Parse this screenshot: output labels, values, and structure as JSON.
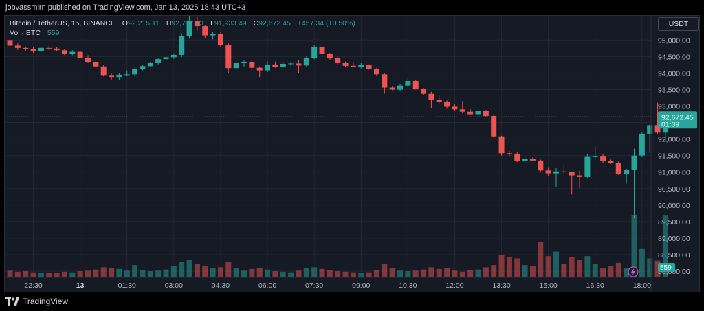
{
  "header": {
    "published_text": "jobvassmirn published on TradingView.com, Jan 13, 2025 18:43 UTC+3"
  },
  "legend": {
    "symbol": "Bitcoin / TetherUS, 15, BINANCE",
    "o_label": "O",
    "o_value": "92,215.11",
    "h_label": "H",
    "h_value": "92,717.73",
    "l_label": "L",
    "l_value": "91,933.49",
    "c_label": "C",
    "c_value": "92,672.45",
    "change": "+457.34 (+0.50%)",
    "vol_label": "Vol · BTC",
    "vol_value": "559"
  },
  "currency_button": "USDT",
  "footer": {
    "brand": "TradingView"
  },
  "colors": {
    "background": "#161a25",
    "up": "#26a69a",
    "down": "#ef5350",
    "grid": "#232733",
    "axis_text": "#b2b5be",
    "price_line": "#26a69a"
  },
  "chart_data": {
    "type": "candlestick",
    "symbol": "Bitcoin / TetherUS",
    "interval": "15",
    "exchange": "BINANCE",
    "ylim": [
      87900,
      96000
    ],
    "y_ticks": [
      88000,
      88500,
      89000,
      89500,
      90000,
      90500,
      91000,
      91500,
      92000,
      92500,
      93000,
      93500,
      94000,
      94500,
      95000
    ],
    "y_tick_labels": [
      "88,000.00",
      "88,500.00",
      "89,000.00",
      "89,500.00",
      "90,000.00",
      "90,500.00",
      "91,000.00",
      "91,500.00",
      "92,000.00",
      "92,500.00",
      "93,000.00",
      "93,500.00",
      "94,000.00",
      "94,500.00",
      "95,000.00"
    ],
    "x_ticks": [
      {
        "label": "22:30",
        "index": 3
      },
      {
        "label": "13",
        "index": 9
      },
      {
        "label": "01:30",
        "index": 15
      },
      {
        "label": "03:00",
        "index": 21
      },
      {
        "label": "04:30",
        "index": 27
      },
      {
        "label": "06:00",
        "index": 33
      },
      {
        "label": "07:30",
        "index": 39
      },
      {
        "label": "09:00",
        "index": 45
      },
      {
        "label": "10:30",
        "index": 51
      },
      {
        "label": "12:00",
        "index": 57
      },
      {
        "label": "13:30",
        "index": 63
      },
      {
        "label": "15:00",
        "index": 69
      },
      {
        "label": "16:30",
        "index": 75
      },
      {
        "label": "18:00",
        "index": 81
      }
    ],
    "last_price": 92672.45,
    "last_price_label": "92,672.45",
    "countdown": "01:39",
    "volume_last_label": "559",
    "candles": [
      {
        "o": 95000,
        "h": 95060,
        "l": 94770,
        "c": 94830,
        "v": 60
      },
      {
        "o": 94830,
        "h": 94900,
        "l": 94700,
        "c": 94760,
        "v": 50
      },
      {
        "o": 94760,
        "h": 94800,
        "l": 94660,
        "c": 94720,
        "v": 55
      },
      {
        "o": 94720,
        "h": 94790,
        "l": 94610,
        "c": 94660,
        "v": 45
      },
      {
        "o": 94660,
        "h": 94790,
        "l": 94640,
        "c": 94760,
        "v": 40
      },
      {
        "o": 94760,
        "h": 94820,
        "l": 94700,
        "c": 94740,
        "v": 42
      },
      {
        "o": 94740,
        "h": 94790,
        "l": 94660,
        "c": 94690,
        "v": 40
      },
      {
        "o": 94690,
        "h": 94720,
        "l": 94540,
        "c": 94580,
        "v": 50
      },
      {
        "o": 94580,
        "h": 94690,
        "l": 94540,
        "c": 94640,
        "v": 45
      },
      {
        "o": 94640,
        "h": 94660,
        "l": 94440,
        "c": 94460,
        "v": 55
      },
      {
        "o": 94460,
        "h": 94540,
        "l": 94300,
        "c": 94330,
        "v": 60
      },
      {
        "o": 94330,
        "h": 94400,
        "l": 94170,
        "c": 94200,
        "v": 70
      },
      {
        "o": 94200,
        "h": 94240,
        "l": 93900,
        "c": 93940,
        "v": 90
      },
      {
        "o": 93940,
        "h": 93990,
        "l": 93790,
        "c": 93880,
        "v": 80
      },
      {
        "o": 93880,
        "h": 94000,
        "l": 93800,
        "c": 93950,
        "v": 75
      },
      {
        "o": 93950,
        "h": 94080,
        "l": 93900,
        "c": 93960,
        "v": 60
      },
      {
        "o": 93960,
        "h": 94160,
        "l": 93900,
        "c": 94130,
        "v": 110
      },
      {
        "o": 94130,
        "h": 94240,
        "l": 94080,
        "c": 94210,
        "v": 65
      },
      {
        "o": 94210,
        "h": 94330,
        "l": 94180,
        "c": 94300,
        "v": 55
      },
      {
        "o": 94300,
        "h": 94450,
        "l": 94260,
        "c": 94420,
        "v": 60
      },
      {
        "o": 94420,
        "h": 94500,
        "l": 94360,
        "c": 94480,
        "v": 70
      },
      {
        "o": 94480,
        "h": 94580,
        "l": 94430,
        "c": 94550,
        "v": 100
      },
      {
        "o": 94550,
        "h": 95210,
        "l": 94480,
        "c": 95120,
        "v": 140
      },
      {
        "o": 95120,
        "h": 95780,
        "l": 95040,
        "c": 95580,
        "v": 160
      },
      {
        "o": 95580,
        "h": 95700,
        "l": 95280,
        "c": 95420,
        "v": 120
      },
      {
        "o": 95420,
        "h": 95440,
        "l": 95050,
        "c": 95140,
        "v": 100
      },
      {
        "o": 95140,
        "h": 95250,
        "l": 95020,
        "c": 95180,
        "v": 80
      },
      {
        "o": 95180,
        "h": 95250,
        "l": 94790,
        "c": 94850,
        "v": 90
      },
      {
        "o": 94850,
        "h": 94900,
        "l": 94010,
        "c": 94150,
        "v": 140
      },
      {
        "o": 94150,
        "h": 94350,
        "l": 94080,
        "c": 94300,
        "v": 80
      },
      {
        "o": 94300,
        "h": 94380,
        "l": 94200,
        "c": 94320,
        "v": 60
      },
      {
        "o": 94320,
        "h": 94400,
        "l": 94100,
        "c": 94160,
        "v": 75
      },
      {
        "o": 94160,
        "h": 94200,
        "l": 93880,
        "c": 94080,
        "v": 80
      },
      {
        "o": 94080,
        "h": 94360,
        "l": 94030,
        "c": 94260,
        "v": 70
      },
      {
        "o": 94260,
        "h": 94350,
        "l": 94160,
        "c": 94180,
        "v": 55
      },
      {
        "o": 94180,
        "h": 94330,
        "l": 94150,
        "c": 94280,
        "v": 50
      },
      {
        "o": 94280,
        "h": 94340,
        "l": 94220,
        "c": 94290,
        "v": 45
      },
      {
        "o": 94290,
        "h": 94400,
        "l": 94000,
        "c": 94230,
        "v": 60
      },
      {
        "o": 94230,
        "h": 94500,
        "l": 94200,
        "c": 94460,
        "v": 80
      },
      {
        "o": 94460,
        "h": 94860,
        "l": 94420,
        "c": 94800,
        "v": 90
      },
      {
        "o": 94800,
        "h": 94900,
        "l": 94530,
        "c": 94570,
        "v": 75
      },
      {
        "o": 94570,
        "h": 94610,
        "l": 94400,
        "c": 94460,
        "v": 65
      },
      {
        "o": 94460,
        "h": 94530,
        "l": 94250,
        "c": 94300,
        "v": 55
      },
      {
        "o": 94300,
        "h": 94350,
        "l": 94180,
        "c": 94220,
        "v": 50
      },
      {
        "o": 94220,
        "h": 94310,
        "l": 94170,
        "c": 94190,
        "v": 45
      },
      {
        "o": 94190,
        "h": 94300,
        "l": 94140,
        "c": 94240,
        "v": 40
      },
      {
        "o": 94240,
        "h": 94260,
        "l": 94110,
        "c": 94130,
        "v": 45
      },
      {
        "o": 94130,
        "h": 94160,
        "l": 93900,
        "c": 93960,
        "v": 65
      },
      {
        "o": 93960,
        "h": 93990,
        "l": 93370,
        "c": 93560,
        "v": 120
      },
      {
        "o": 93560,
        "h": 93610,
        "l": 93480,
        "c": 93500,
        "v": 80
      },
      {
        "o": 93500,
        "h": 93680,
        "l": 93460,
        "c": 93620,
        "v": 60
      },
      {
        "o": 93620,
        "h": 93860,
        "l": 93580,
        "c": 93760,
        "v": 55
      },
      {
        "o": 93760,
        "h": 93790,
        "l": 93500,
        "c": 93520,
        "v": 60
      },
      {
        "o": 93520,
        "h": 93550,
        "l": 93330,
        "c": 93370,
        "v": 70
      },
      {
        "o": 93370,
        "h": 93430,
        "l": 92930,
        "c": 93180,
        "v": 90
      },
      {
        "o": 93180,
        "h": 93310,
        "l": 93080,
        "c": 93120,
        "v": 75
      },
      {
        "o": 93120,
        "h": 93170,
        "l": 92920,
        "c": 92980,
        "v": 80
      },
      {
        "o": 92980,
        "h": 93050,
        "l": 92850,
        "c": 92900,
        "v": 60
      },
      {
        "o": 92900,
        "h": 93150,
        "l": 92780,
        "c": 92830,
        "v": 50
      },
      {
        "o": 92830,
        "h": 92910,
        "l": 92720,
        "c": 92750,
        "v": 65
      },
      {
        "o": 92750,
        "h": 93120,
        "l": 92700,
        "c": 92850,
        "v": 70
      },
      {
        "o": 92850,
        "h": 92880,
        "l": 92680,
        "c": 92700,
        "v": 90
      },
      {
        "o": 92700,
        "h": 92740,
        "l": 92030,
        "c": 92080,
        "v": 110
      },
      {
        "o": 92080,
        "h": 92100,
        "l": 91500,
        "c": 91570,
        "v": 200
      },
      {
        "o": 91570,
        "h": 91640,
        "l": 91480,
        "c": 91550,
        "v": 180
      },
      {
        "o": 91550,
        "h": 91620,
        "l": 91300,
        "c": 91330,
        "v": 170
      },
      {
        "o": 91330,
        "h": 91440,
        "l": 91280,
        "c": 91390,
        "v": 110
      },
      {
        "o": 91390,
        "h": 91450,
        "l": 91330,
        "c": 91350,
        "v": 100
      },
      {
        "o": 91350,
        "h": 91380,
        "l": 90990,
        "c": 91050,
        "v": 320
      },
      {
        "o": 91050,
        "h": 91150,
        "l": 90870,
        "c": 90960,
        "v": 190
      },
      {
        "o": 90960,
        "h": 91140,
        "l": 90560,
        "c": 91020,
        "v": 230
      },
      {
        "o": 91020,
        "h": 91220,
        "l": 90940,
        "c": 91000,
        "v": 120
      },
      {
        "o": 91000,
        "h": 91020,
        "l": 90320,
        "c": 90900,
        "v": 180
      },
      {
        "o": 90900,
        "h": 91040,
        "l": 90520,
        "c": 90850,
        "v": 160
      },
      {
        "o": 90850,
        "h": 91550,
        "l": 90830,
        "c": 91480,
        "v": 190
      },
      {
        "o": 91480,
        "h": 91770,
        "l": 91400,
        "c": 91490,
        "v": 120
      },
      {
        "o": 91490,
        "h": 91560,
        "l": 91280,
        "c": 91330,
        "v": 80
      },
      {
        "o": 91330,
        "h": 91380,
        "l": 91250,
        "c": 91280,
        "v": 100
      },
      {
        "o": 91280,
        "h": 91330,
        "l": 90910,
        "c": 90950,
        "v": 130
      },
      {
        "o": 90950,
        "h": 91100,
        "l": 90650,
        "c": 91060,
        "v": 85
      },
      {
        "o": 91060,
        "h": 91710,
        "l": 89600,
        "c": 91500,
        "v": 560
      },
      {
        "o": 91500,
        "h": 92220,
        "l": 91450,
        "c": 92160,
        "v": 260
      },
      {
        "o": 92160,
        "h": 92450,
        "l": 91580,
        "c": 92420,
        "v": 170
      },
      {
        "o": 92420,
        "h": 93100,
        "l": 92160,
        "c": 92215,
        "v": 150
      },
      {
        "o": 92215.11,
        "h": 92717.73,
        "l": 91933.49,
        "c": 92672.45,
        "v": 559
      }
    ]
  }
}
